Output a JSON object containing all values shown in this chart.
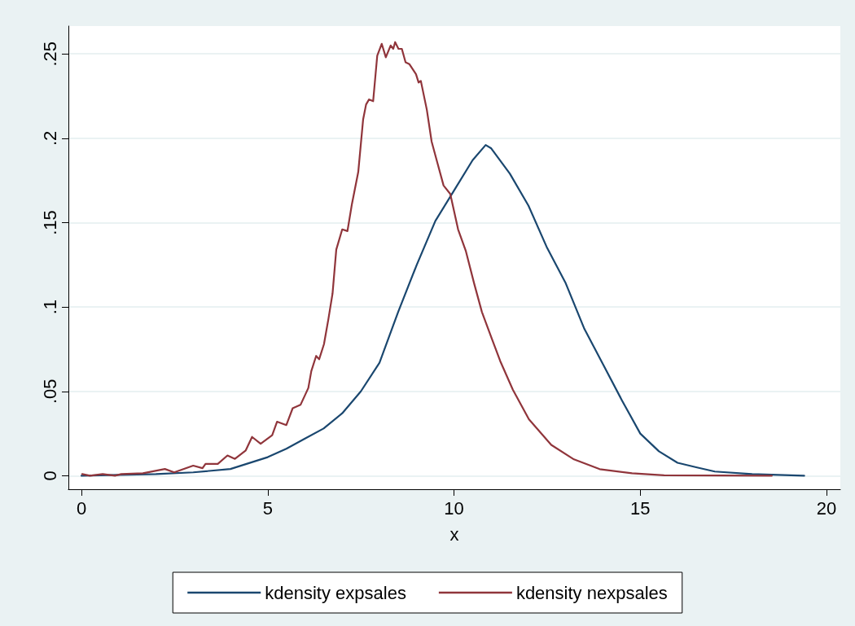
{
  "chart_data": {
    "type": "line",
    "xlabel": "x",
    "xlim": [
      -0.35,
      20.37
    ],
    "xticks": [
      0,
      5,
      10,
      15,
      20
    ],
    "ylim": [
      -0.008,
      0.2665
    ],
    "yticks": [
      {
        "value": 0,
        "label": "0"
      },
      {
        "value": 0.05,
        "label": ".05"
      },
      {
        "value": 0.1,
        "label": ".1"
      },
      {
        "value": 0.15,
        "label": ".15"
      },
      {
        "value": 0.2,
        "label": ".2"
      },
      {
        "value": 0.25,
        "label": ".25"
      }
    ],
    "grid": "y",
    "legend": "bottom",
    "marker": "none",
    "line_style": "solid",
    "series": [
      {
        "name": "kdensity expsales",
        "color": "#1a476f",
        "x": [
          0,
          2,
          3,
          4,
          5,
          5.5,
          6,
          6.5,
          7,
          7.5,
          8,
          8.5,
          9,
          9.5,
          10,
          10.5,
          10.85,
          11,
          11.5,
          12,
          12.5,
          13,
          13.5,
          14,
          14.5,
          15,
          15.5,
          16,
          16.5,
          17,
          18,
          19.4
        ],
        "values": [
          0,
          0.001,
          0.002,
          0.004,
          0.011,
          0.016,
          0.022,
          0.028,
          0.037,
          0.05,
          0.067,
          0.097,
          0.125,
          0.151,
          0.169,
          0.187,
          0.196,
          0.194,
          0.179,
          0.16,
          0.135,
          0.114,
          0.087,
          0.066,
          0.045,
          0.025,
          0.0145,
          0.0077,
          0.005,
          0.0025,
          0.001,
          0
        ]
      },
      {
        "name": "kdensity nexpsales",
        "color": "#90353b",
        "x": [
          0.02,
          0.23,
          0.57,
          0.9,
          1.07,
          1.65,
          2.24,
          2.49,
          3,
          3.25,
          3.33,
          3.66,
          3.92,
          4.12,
          4.41,
          4.58,
          4.81,
          5.12,
          5.25,
          5.5,
          5.67,
          5.88,
          6.09,
          6.17,
          6.3,
          6.38,
          6.51,
          6.63,
          6.74,
          6.84,
          7,
          7.14,
          7.26,
          7.43,
          7.56,
          7.64,
          7.72,
          7.83,
          7.94,
          8.06,
          8.17,
          8.3,
          8.37,
          8.42,
          8.51,
          8.6,
          8.7,
          8.8,
          8.98,
          9.05,
          9.11,
          9.27,
          9.4,
          9.56,
          9.72,
          9.9,
          10.11,
          10.32,
          10.54,
          10.75,
          11.02,
          11.24,
          11.58,
          12.01,
          12.61,
          13.22,
          13.91,
          14.78,
          15.64,
          18.53
        ],
        "values": [
          0.001,
          0,
          0.001,
          0,
          0.001,
          0.0015,
          0.004,
          0.002,
          0.006,
          0.0045,
          0.007,
          0.007,
          0.012,
          0.01,
          0.015,
          0.023,
          0.019,
          0.024,
          0.032,
          0.03,
          0.04,
          0.042,
          0.052,
          0.062,
          0.071,
          0.069,
          0.078,
          0.093,
          0.108,
          0.134,
          0.146,
          0.145,
          0.161,
          0.18,
          0.211,
          0.22,
          0.223,
          0.222,
          0.249,
          0.256,
          0.248,
          0.255,
          0.253,
          0.257,
          0.253,
          0.253,
          0.245,
          0.244,
          0.238,
          0.233,
          0.234,
          0.217,
          0.198,
          0.185,
          0.172,
          0.167,
          0.146,
          0.133,
          0.114,
          0.097,
          0.081,
          0.068,
          0.051,
          0.0335,
          0.0183,
          0.0097,
          0.0039,
          0.0015,
          0.0003,
          0
        ]
      }
    ]
  }
}
